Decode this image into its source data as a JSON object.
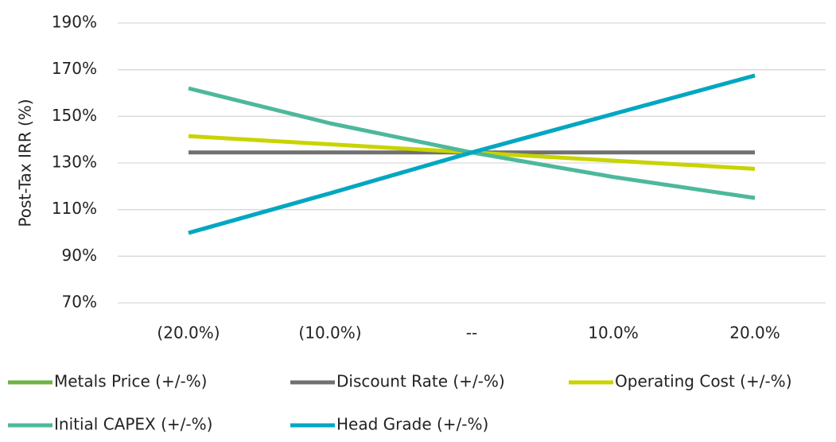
{
  "chart_data": {
    "type": "line",
    "y_label": "Post-Tax IRR (%)",
    "categories": [
      "(20.0%)",
      "(10.0%)",
      "--",
      "10.0%",
      "20.0%"
    ],
    "series": [
      {
        "name": "Metals Price (+/-%)",
        "color": "#70b244",
        "values": [
          100,
          117,
          134.5,
          151,
          167.5
        ]
      },
      {
        "name": "Discount Rate (+/-%)",
        "color": "#707070",
        "values": [
          134.5,
          134.5,
          134.5,
          134.5,
          134.5
        ]
      },
      {
        "name": "Operating Cost (+/-%)",
        "color": "#c8d400",
        "values": [
          141.5,
          138,
          134.5,
          131,
          127.5
        ]
      },
      {
        "name": "Initial CAPEX (+/-%)",
        "color": "#4db89b",
        "values": [
          162,
          147,
          134.5,
          124,
          115
        ]
      },
      {
        "name": "Head Grade (+/-%)",
        "color": "#00a7c4",
        "values": [
          100,
          117,
          134.5,
          151,
          167.5
        ]
      }
    ],
    "ylim": [
      70,
      190
    ],
    "yticks": [
      {
        "value": 70,
        "label": "70%"
      },
      {
        "value": 90,
        "label": "90%"
      },
      {
        "value": 110,
        "label": "110%"
      },
      {
        "value": 130,
        "label": "130%"
      },
      {
        "value": 150,
        "label": "150%"
      },
      {
        "value": 170,
        "label": "170%"
      },
      {
        "value": 190,
        "label": "190%"
      }
    ],
    "grid": true
  }
}
